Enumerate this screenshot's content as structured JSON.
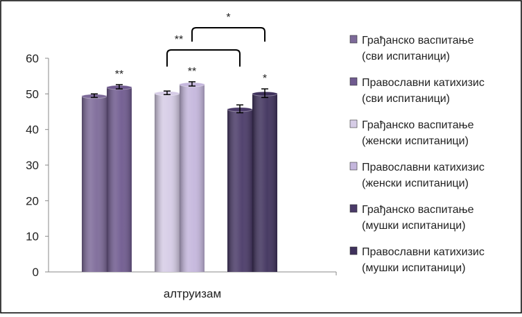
{
  "chart_data": {
    "type": "bar",
    "categories": [
      "алтруизам"
    ],
    "xlabel": "алтруизам",
    "ylabel": "",
    "title": "",
    "ylim": [
      0,
      60
    ],
    "yticks": [
      0,
      10,
      20,
      30,
      40,
      50,
      60
    ],
    "grid": false,
    "legend_position": "right",
    "series": [
      {
        "name": "Грађанско васпитање (сви испитаници)",
        "legend_lines": [
          "Грађанско васпитање",
          "(сви испитаници)"
        ],
        "value": 49.5,
        "error": 0.5,
        "color": "#7d6a99",
        "sig": ""
      },
      {
        "name": "Православни катихизис (сви испитаници)",
        "legend_lines": [
          "Православни катихизис",
          "(сви испитаници)"
        ],
        "value": 52.0,
        "error": 0.6,
        "color": "#6f5a8f",
        "sig": "**"
      },
      {
        "name": "Грађанско васпитање (женски испитаници)",
        "legend_lines": [
          "Грађанско васпитање",
          "(женски испитаници)"
        ],
        "value": 50.3,
        "error": 0.5,
        "color": "#d6cce6",
        "sig": ""
      },
      {
        "name": "Православни катихизис (женски испитаници)",
        "legend_lines": [
          "Православни катихизис",
          "(женски испитаници)"
        ],
        "value": 52.8,
        "error": 0.6,
        "color": "#c4b6dc",
        "sig": "**"
      },
      {
        "name": "Грађанско васпитање (мушки испитаници)",
        "legend_lines": [
          "Грађанско васпитање",
          "(мушки испитаници)"
        ],
        "value": 45.8,
        "error": 1.1,
        "color": "#4a3a68",
        "sig": ""
      },
      {
        "name": "Православни катихизис (мушки испитаници)",
        "legend_lines": [
          "Православни катихизис",
          "(мушки испитаници)"
        ],
        "value": 50.2,
        "error": 1.2,
        "color": "#3f315c",
        "sig": "*"
      }
    ],
    "brackets": [
      {
        "from": 2,
        "to": 4,
        "label": "**"
      },
      {
        "from": 3,
        "to": 5,
        "label": "*"
      }
    ]
  }
}
